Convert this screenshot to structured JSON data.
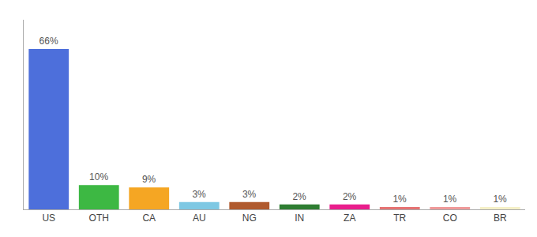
{
  "chart_data": {
    "type": "bar",
    "categories": [
      "US",
      "OTH",
      "CA",
      "AU",
      "NG",
      "IN",
      "ZA",
      "TR",
      "CO",
      "BR"
    ],
    "values": [
      66,
      10,
      9,
      3,
      3,
      2,
      2,
      1,
      1,
      1
    ],
    "value_labels": [
      "66%",
      "10%",
      "9%",
      "3%",
      "3%",
      "2%",
      "2%",
      "1%",
      "1%",
      "1%"
    ],
    "colors": [
      "#4d6fdb",
      "#3db843",
      "#f5a623",
      "#7ec8e3",
      "#b05a2e",
      "#2e7d32",
      "#e91e8c",
      "#e57373",
      "#ef9a9a",
      "#f5f0c8"
    ],
    "ylim": [
      0,
      78
    ],
    "grid": false,
    "data_labels": true,
    "tick_labels": "x"
  }
}
